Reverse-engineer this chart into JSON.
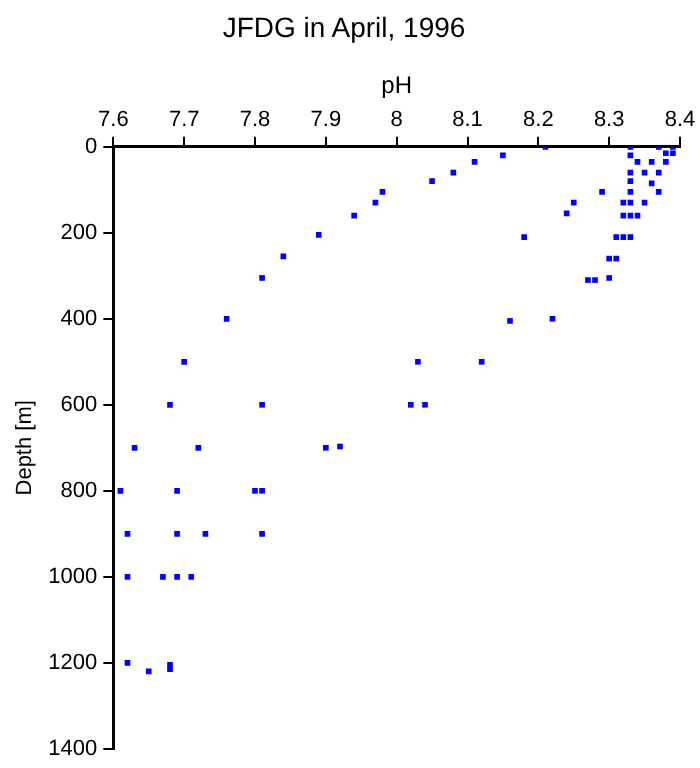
{
  "chart_data": {
    "type": "scatter",
    "title": "JFDG in April, 1996",
    "xlabel": "pH",
    "ylabel": "Depth [m]",
    "xlim": [
      7.6,
      8.4
    ],
    "xticks": [
      7.6,
      7.7,
      7.8,
      7.9,
      8,
      8.1,
      8.2,
      8.3,
      8.4
    ],
    "ylim": [
      1400,
      0
    ],
    "yticks": [
      0,
      200,
      400,
      600,
      800,
      1000,
      1200,
      1400
    ],
    "grid": false,
    "legend": false,
    "marker": "square",
    "series": [
      {
        "color": "#0000ff",
        "x": [
          7.98,
          7.97,
          7.94,
          7.89,
          7.84,
          7.81,
          7.76,
          7.7,
          7.68,
          7.81,
          8.21,
          8.15,
          8.11,
          8.08,
          8.05,
          8.18,
          8.29,
          8.25,
          8.24,
          8.16,
          8.22,
          8.12,
          8.03,
          8.02,
          8.04,
          8.27,
          8.28,
          8.3,
          8.3,
          8.31,
          8.31,
          8.32,
          8.33,
          8.32,
          8.33,
          8.34,
          8.32,
          8.33,
          8.35,
          8.33,
          8.37,
          8.33,
          8.36,
          8.33,
          8.35,
          8.37,
          8.33,
          8.34,
          8.36,
          8.38,
          8.33,
          8.37,
          8.39,
          8.38,
          8.39,
          7.63,
          7.72,
          7.9,
          7.92,
          7.61,
          7.69,
          7.8,
          7.81,
          7.62,
          7.69,
          7.73,
          7.81,
          7.62,
          7.67,
          7.69,
          7.71,
          7.62,
          7.65,
          7.68,
          7.68
        ],
        "values": [
          105,
          130,
          160,
          205,
          255,
          305,
          400,
          500,
          600,
          600,
          0,
          20,
          35,
          60,
          80,
          210,
          105,
          130,
          155,
          405,
          400,
          500,
          500,
          600,
          600,
          310,
          310,
          305,
          260,
          260,
          210,
          210,
          210,
          160,
          160,
          160,
          130,
          130,
          130,
          105,
          105,
          80,
          85,
          60,
          60,
          60,
          20,
          35,
          35,
          35,
          0,
          0,
          0,
          15,
          15,
          700,
          700,
          700,
          697,
          800,
          800,
          800,
          800,
          900,
          900,
          900,
          900,
          1000,
          1000,
          1000,
          1000,
          1200,
          1220,
          1205,
          1215
        ]
      }
    ]
  }
}
